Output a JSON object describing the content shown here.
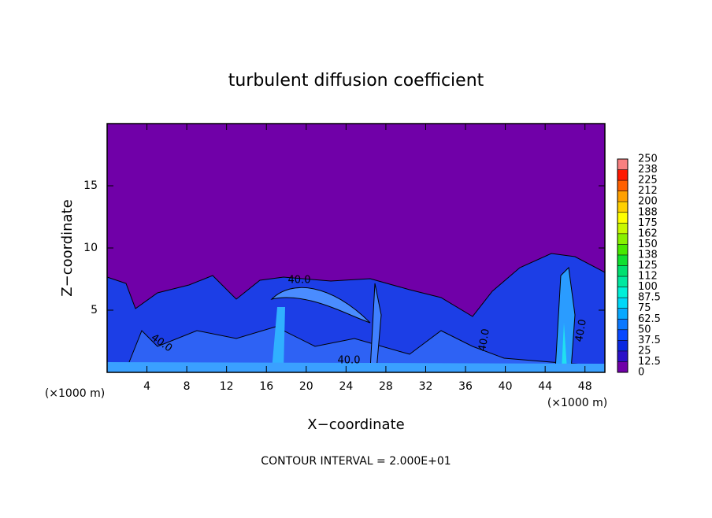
{
  "chart_data": {
    "type": "contour",
    "title": "turbulent diffusion coefficient",
    "xlabel": "X−coordinate",
    "ylabel": "Z−coordinate",
    "x_unit": "(×1000 m)",
    "footer": "CONTOUR INTERVAL = 2.000E+01",
    "contour_label": "40.0",
    "xlim": [
      0,
      50
    ],
    "xticks": [
      4,
      8,
      12,
      16,
      20,
      24,
      28,
      32,
      36,
      40,
      44,
      48
    ],
    "ylim": [
      0,
      20
    ],
    "yticks": [
      5,
      10,
      15
    ],
    "colorbar": {
      "lim": [
        0,
        250
      ],
      "ticks": [
        0,
        12.5,
        25,
        37.5,
        50,
        62.5,
        75,
        87.5,
        100,
        {
          "value": 112.5,
          "label": "112"
        },
        125,
        {
          "value": 137.5,
          "label": "138"
        },
        150,
        {
          "value": 162.5,
          "label": "162"
        },
        175,
        {
          "value": 187.5,
          "label": "188"
        },
        200,
        {
          "value": 212.5,
          "label": "212"
        },
        225,
        {
          "value": 237.5,
          "label": "238"
        },
        250
      ],
      "colors": [
        "#7000a8",
        "#2a10c8",
        "#0a28e0",
        "#0848ff",
        "#0a78ff",
        "#08a8ff",
        "#00d8f8",
        "#00f0d8",
        "#00e8a0",
        "#00e070",
        "#10e030",
        "#48e800",
        "#88f000",
        "#c8f800",
        "#ffff00",
        "#ffd000",
        "#ffa000",
        "#ff6000",
        "#ff1800",
        "#f88080"
      ]
    }
  }
}
